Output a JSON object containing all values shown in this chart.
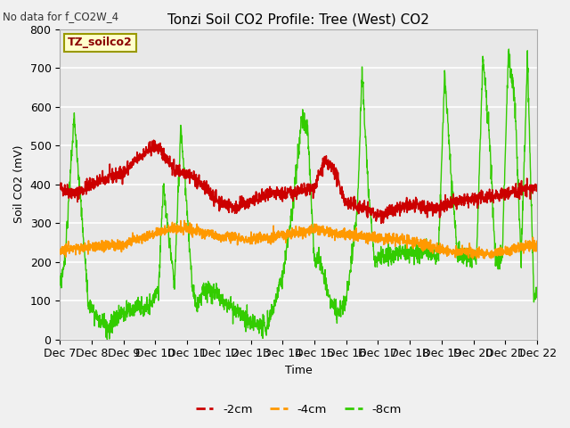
{
  "title": "Tonzi Soil CO2 Profile: Tree (West) CO2",
  "subtitle": "No data for f_CO2W_4",
  "ylabel": "Soil CO2 (mV)",
  "xlabel": "Time",
  "legend_label": "TZ_soilco2",
  "series_labels": [
    "-2cm",
    "-4cm",
    "-8cm"
  ],
  "series_colors": [
    "#cc0000",
    "#ff9900",
    "#33cc00"
  ],
  "ylim": [
    0,
    800
  ],
  "bg_color": "#e8e8e8",
  "tick_labels": [
    "Dec 7",
    "Dec 8",
    "Dec 9",
    "Dec 10",
    "Dec 11",
    "Dec 12",
    "Dec 13",
    "Dec 14",
    "Dec 15",
    "Dec 16",
    "Dec 17",
    "Dec 18",
    "Dec 19",
    "Dec 20",
    "Dec 21",
    "Dec 22"
  ],
  "n_points": 2000
}
